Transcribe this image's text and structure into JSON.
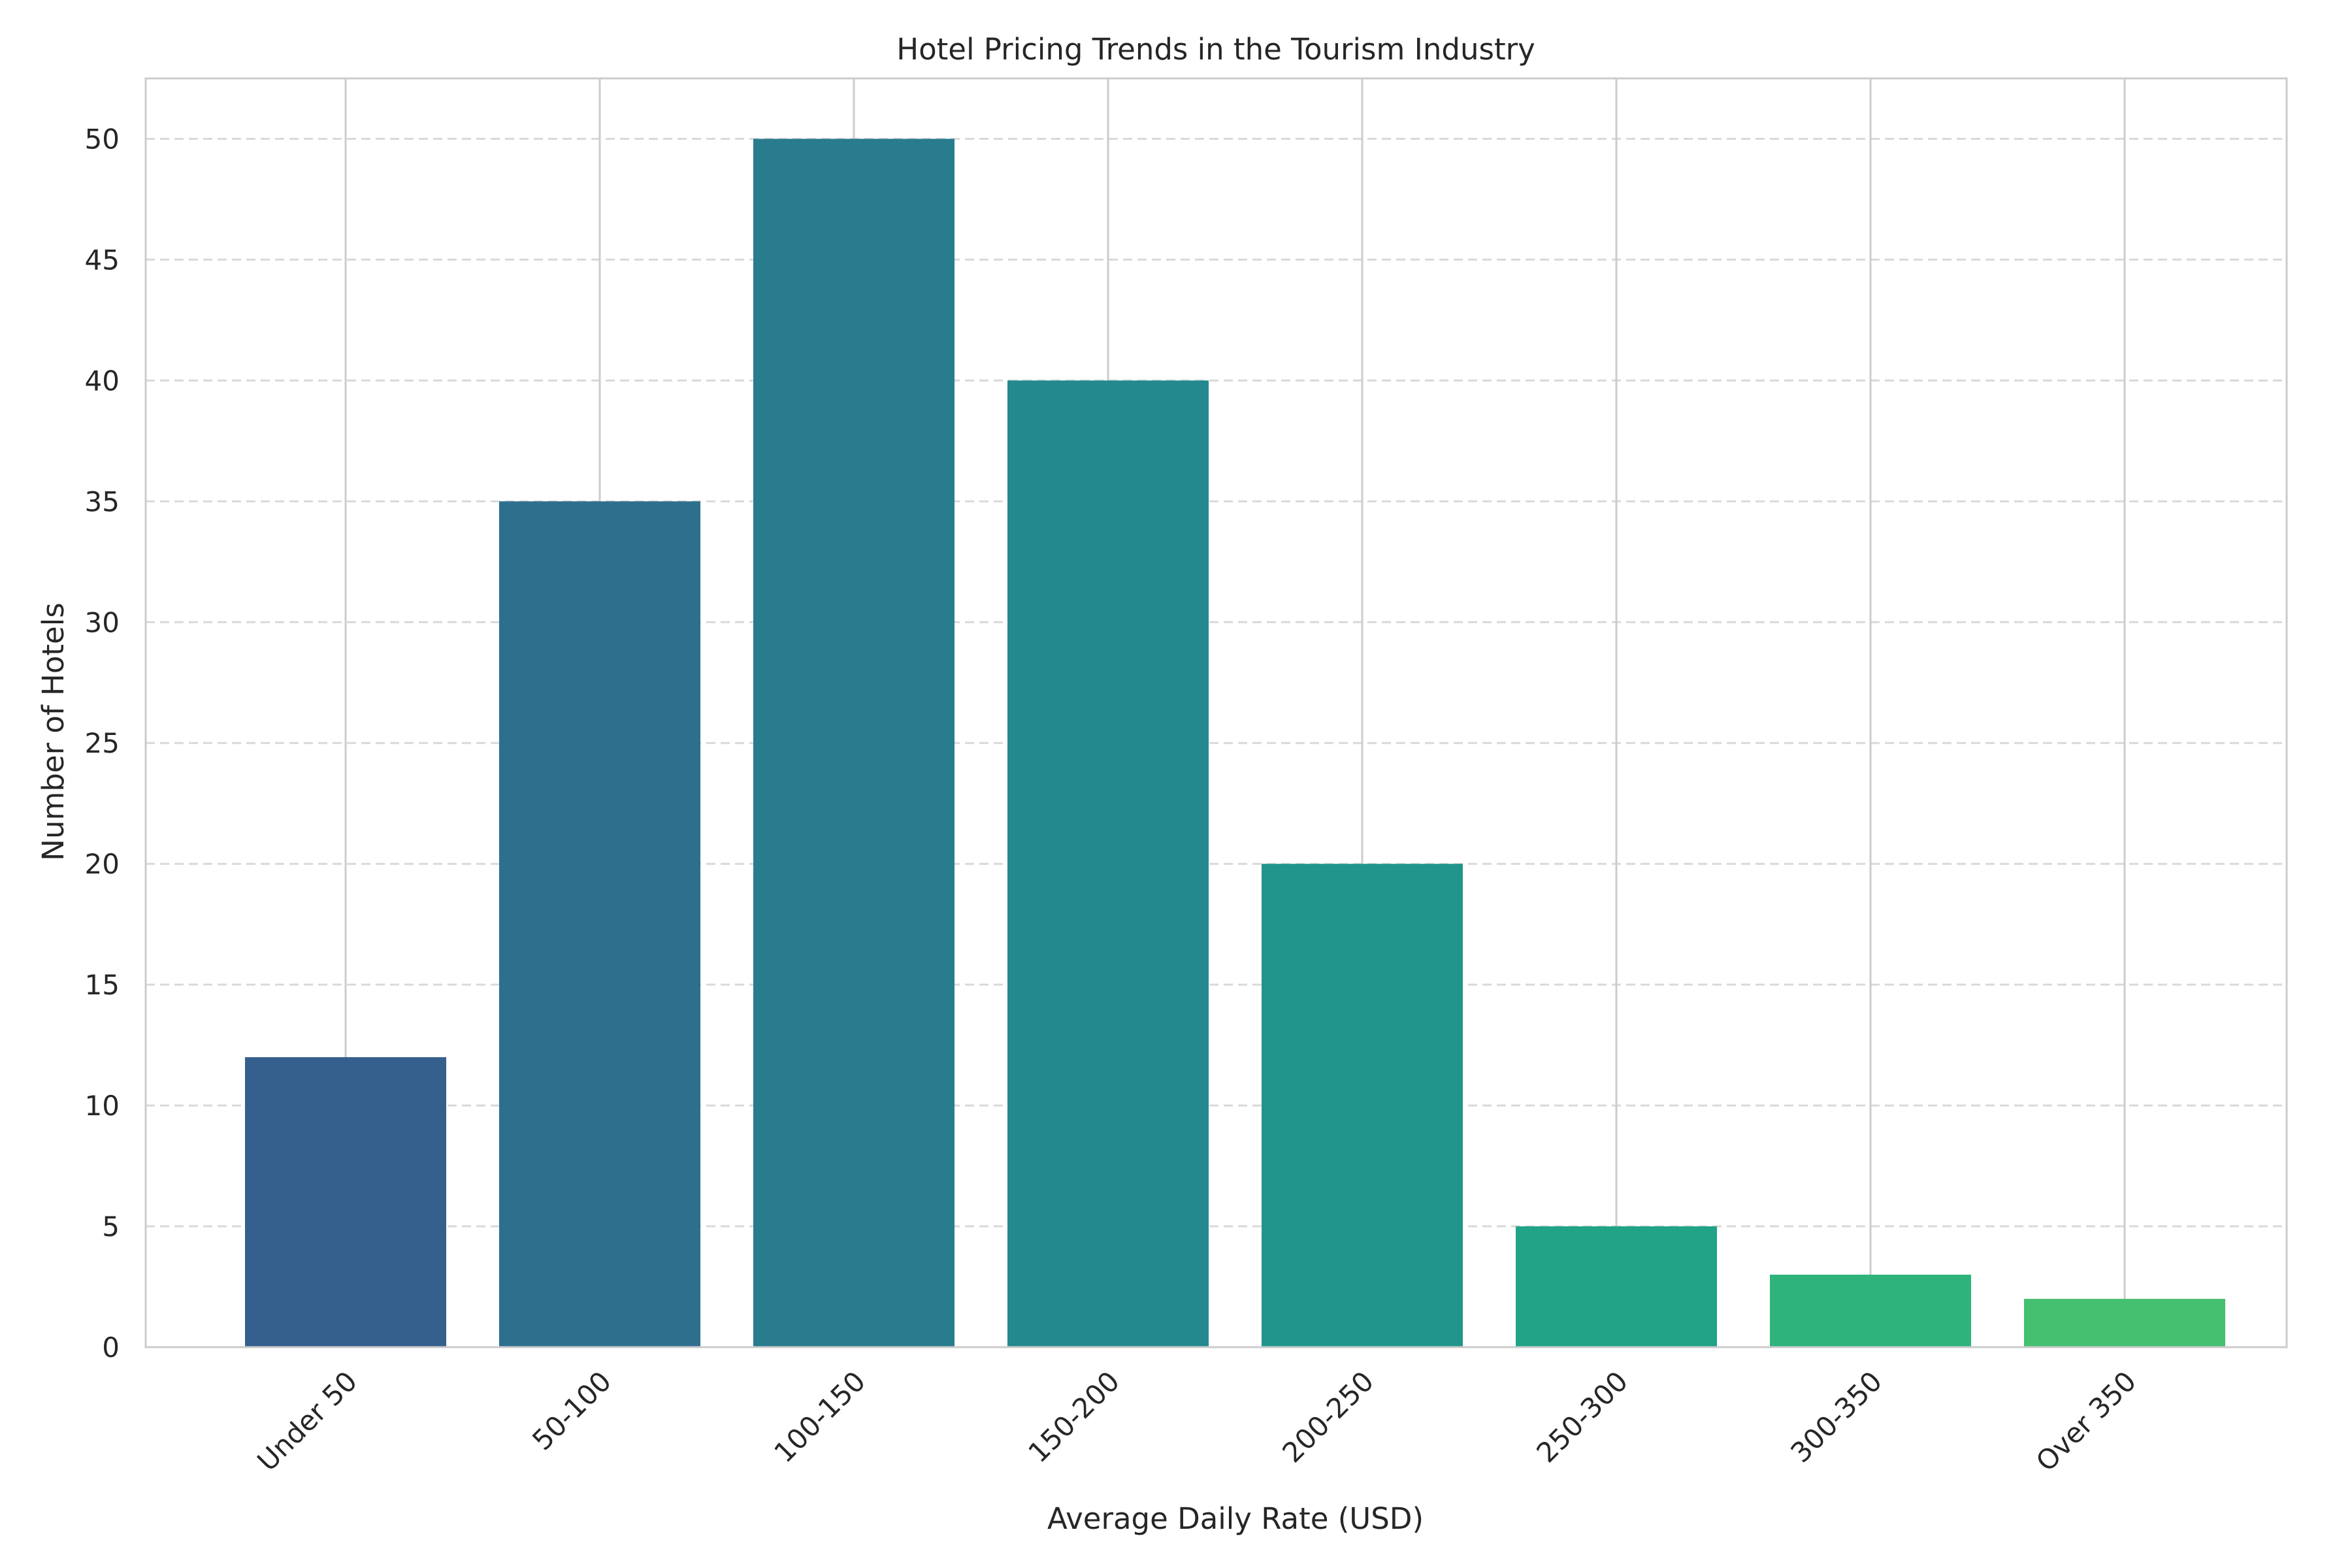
{
  "chart_data": {
    "type": "bar",
    "title": "Hotel Pricing Trends in the Tourism Industry",
    "xlabel": "Average Daily Rate (USD)",
    "ylabel": "Number of Hotels",
    "categories": [
      "Under 50",
      "50-100",
      "100-150",
      "150-200",
      "200-250",
      "250-300",
      "300-350",
      "Over 350"
    ],
    "values": [
      12,
      35,
      50,
      40,
      20,
      5,
      3,
      2
    ],
    "colors": [
      "#355f8d",
      "#2e6f8e",
      "#297b8e",
      "#23898e",
      "#21958b",
      "#20a386",
      "#2eb37c",
      "#45bf70"
    ],
    "ylim": [
      0,
      52.5
    ],
    "yticks": [
      0,
      5,
      10,
      15,
      20,
      25,
      30,
      35,
      40,
      45,
      50
    ],
    "grid": "horizontal dashed; vertical solid at category centers",
    "legend": "none",
    "tick_label_rotation": "45 degrees"
  }
}
